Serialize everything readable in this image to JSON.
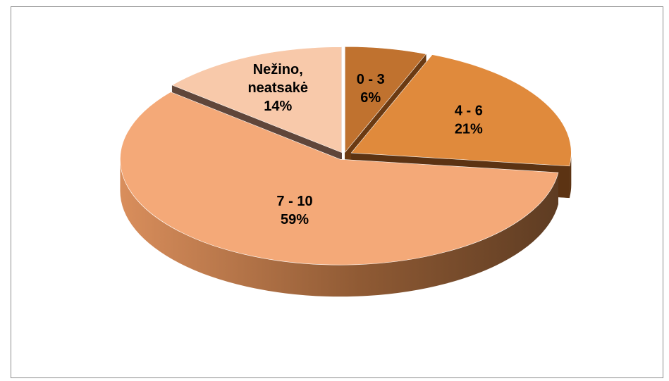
{
  "chart_data": {
    "type": "pie",
    "title": "",
    "three_d": true,
    "exploded": true,
    "slices": [
      {
        "label_lines": [
          "0 - 3"
        ],
        "value": 6,
        "pct_label": "6%",
        "color": "#C0722F",
        "side_color": "#6B3A12"
      },
      {
        "label_lines": [
          "4 - 6"
        ],
        "value": 21,
        "pct_label": "21%",
        "color": "#E08A3C",
        "side_color": "#5C3313"
      },
      {
        "label_lines": [
          "7 - 10"
        ],
        "value": 59,
        "pct_label": "59%",
        "color": "#F4A978",
        "side_color": "#6E4428"
      },
      {
        "label_lines": [
          "Nežino,",
          "neatsakė"
        ],
        "value": 14,
        "pct_label": "14%",
        "color": "#F8C9AA",
        "side_color": "#60463A"
      }
    ]
  }
}
